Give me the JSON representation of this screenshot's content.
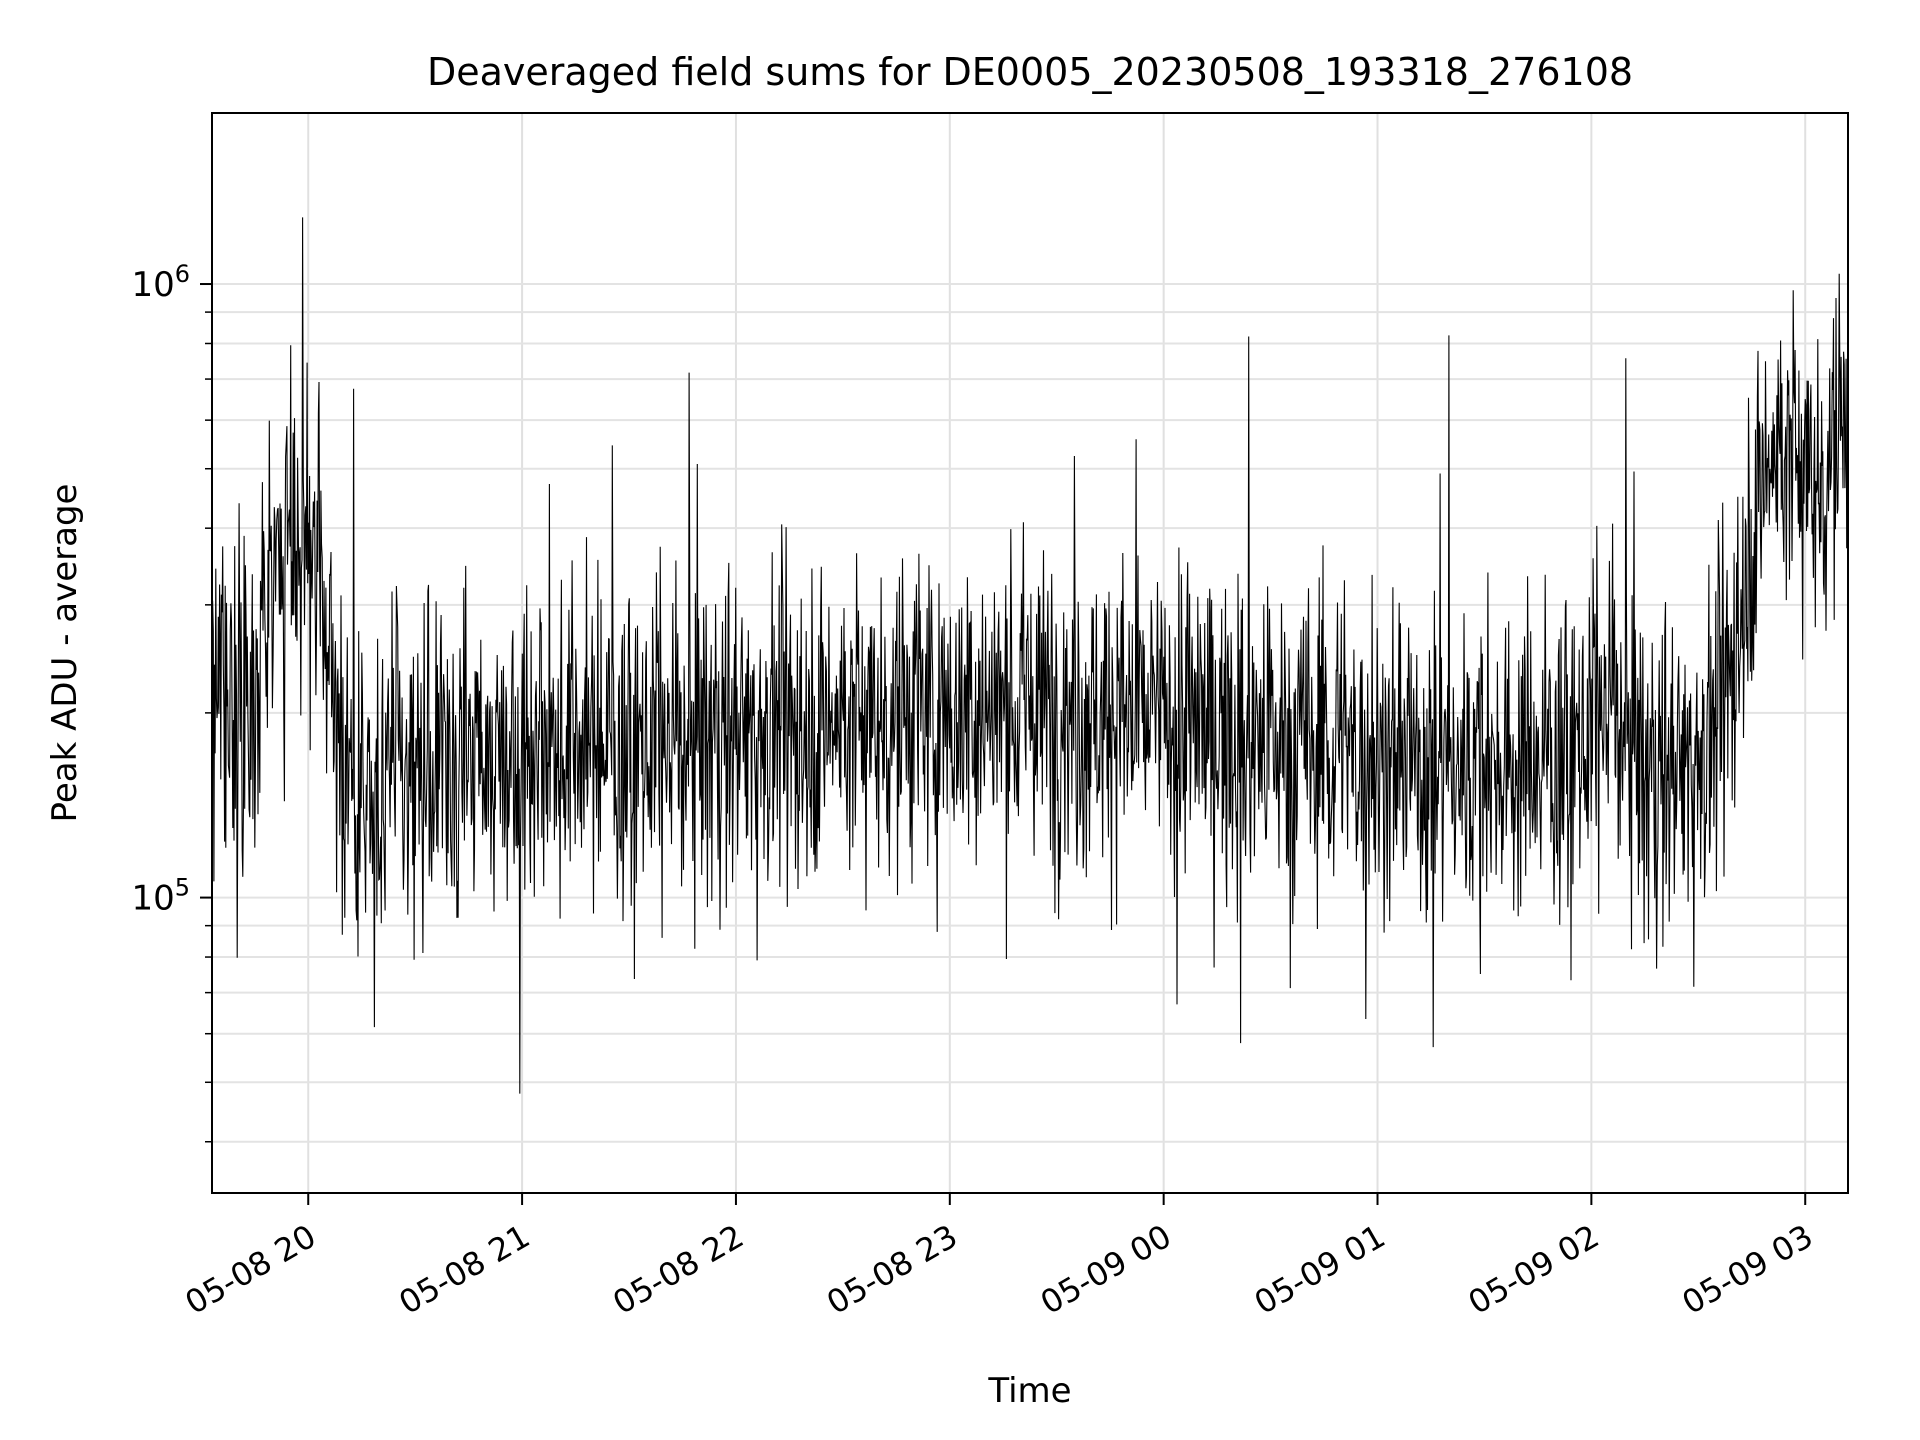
{
  "figure": {
    "title": "Deaveraged field sums for DE0005_20230508_193318_276108",
    "xlabel": "Time",
    "ylabel": "Peak ADU - average"
  },
  "chart_data": {
    "type": "line",
    "title": "Deaveraged field sums for DE0005_20230508_193318_276108",
    "xlabel": "Time",
    "ylabel": "Peak ADU - average",
    "yscale": "log",
    "grid": true,
    "x_range": [
      "2023-05-08 19:33",
      "2023-05-09 03:12"
    ],
    "ylim": [
      33000,
      1900000
    ],
    "x_ticks": [
      {
        "time": "2023-05-08 20:00",
        "label": "05-08 20"
      },
      {
        "time": "2023-05-08 21:00",
        "label": "05-08 21"
      },
      {
        "time": "2023-05-08 22:00",
        "label": "05-08 22"
      },
      {
        "time": "2023-05-08 23:00",
        "label": "05-08 23"
      },
      {
        "time": "2023-05-09 00:00",
        "label": "05-09 00"
      },
      {
        "time": "2023-05-09 01:00",
        "label": "05-09 01"
      },
      {
        "time": "2023-05-09 02:00",
        "label": "05-09 02"
      },
      {
        "time": "2023-05-09 03:00",
        "label": "05-09 03"
      }
    ],
    "y_ticks": [
      {
        "value": 100000,
        "base": "10",
        "exp": "5"
      },
      {
        "value": 1000000,
        "base": "10",
        "exp": "6"
      }
    ],
    "line_color": "#000000",
    "series": [
      {
        "points": [
          [
            "2023-05-08 19:33",
            200000
          ],
          [
            "2023-05-08 19:35",
            240000
          ],
          [
            "2023-05-08 19:38",
            200000
          ],
          [
            "2023-05-08 19:41",
            230000
          ],
          [
            "2023-05-08 19:44",
            210000
          ],
          [
            "2023-05-08 19:47",
            280000
          ],
          [
            "2023-05-08 19:50",
            330000
          ],
          [
            "2023-05-08 19:53",
            370000
          ],
          [
            "2023-05-08 19:56",
            380000
          ],
          [
            "2023-05-08 19:59",
            400000
          ],
          [
            "2023-05-08 20:02",
            340000
          ],
          [
            "2023-05-08 20:05",
            260000
          ],
          [
            "2023-05-08 20:08",
            190000
          ],
          [
            "2023-05-08 20:12",
            150000
          ],
          [
            "2023-05-08 20:15",
            145000
          ],
          [
            "2023-05-08 20:20",
            150000
          ],
          [
            "2023-05-08 20:25",
            165000
          ],
          [
            "2023-05-08 20:30",
            160000
          ],
          [
            "2023-05-08 20:40",
            165000
          ],
          [
            "2023-05-08 20:50",
            175000
          ],
          [
            "2023-05-08 21:00",
            180000
          ],
          [
            "2023-05-08 21:15",
            180000
          ],
          [
            "2023-05-08 21:30",
            175000
          ],
          [
            "2023-05-08 21:45",
            180000
          ],
          [
            "2023-05-08 22:00",
            190000
          ],
          [
            "2023-05-08 22:15",
            195000
          ],
          [
            "2023-05-08 22:30",
            195000
          ],
          [
            "2023-05-08 22:45",
            200000
          ],
          [
            "2023-05-08 23:00",
            200000
          ],
          [
            "2023-05-08 23:15",
            205000
          ],
          [
            "2023-05-08 23:30",
            205000
          ],
          [
            "2023-05-08 23:45",
            200000
          ],
          [
            "2023-05-09 00:00",
            195000
          ],
          [
            "2023-05-09 00:15",
            190000
          ],
          [
            "2023-05-09 00:30",
            180000
          ],
          [
            "2023-05-09 00:45",
            175000
          ],
          [
            "2023-05-09 01:00",
            170000
          ],
          [
            "2023-05-09 01:15",
            165000
          ],
          [
            "2023-05-09 01:30",
            165000
          ],
          [
            "2023-05-09 01:45",
            170000
          ],
          [
            "2023-05-09 01:55",
            175000
          ],
          [
            "2023-05-09 02:00",
            185000
          ],
          [
            "2023-05-09 02:05",
            210000
          ],
          [
            "2023-05-09 02:10",
            190000
          ],
          [
            "2023-05-09 02:15",
            160000
          ],
          [
            "2023-05-09 02:25",
            165000
          ],
          [
            "2023-05-09 02:35",
            190000
          ],
          [
            "2023-05-09 02:40",
            260000
          ],
          [
            "2023-05-09 02:45",
            400000
          ],
          [
            "2023-05-09 02:50",
            520000
          ],
          [
            "2023-05-09 02:55",
            540000
          ],
          [
            "2023-05-09 03:00",
            500000
          ],
          [
            "2023-05-09 03:05",
            480000
          ],
          [
            "2023-05-09 03:08",
            560000
          ],
          [
            "2023-05-09 03:12",
            620000
          ]
        ]
      }
    ]
  }
}
